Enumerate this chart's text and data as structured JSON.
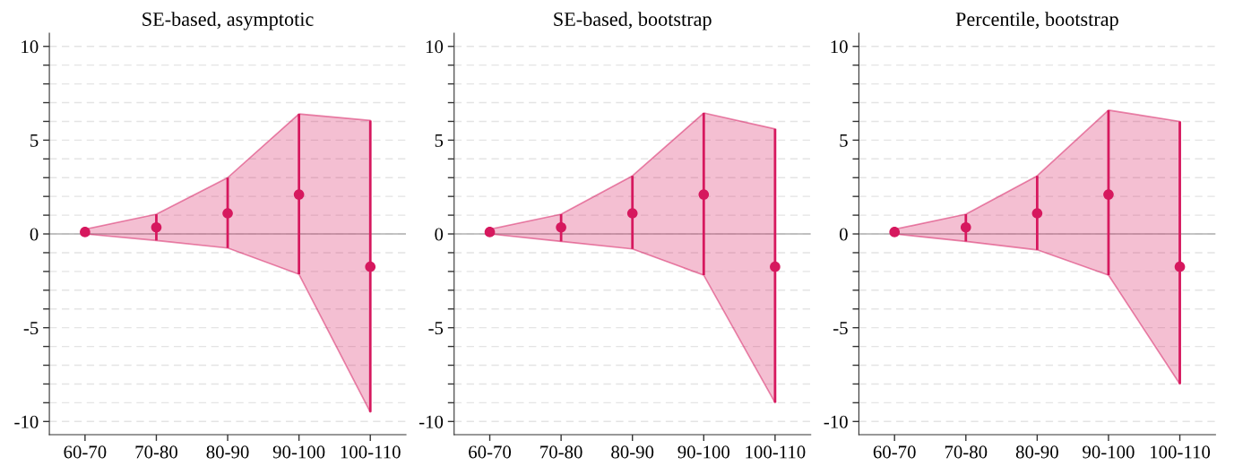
{
  "chart_data": [
    {
      "type": "scatter",
      "title": "SE-based, asymptotic",
      "categories": [
        "60-70",
        "70-80",
        "80-90",
        "90-100",
        "100-110"
      ],
      "ylim": [
        -10.7,
        10.7
      ],
      "yticks": [
        {
          "value": -10,
          "label": "-10"
        },
        {
          "value": -9,
          "label": null
        },
        {
          "value": -8,
          "label": null
        },
        {
          "value": -7,
          "label": null
        },
        {
          "value": -6,
          "label": null
        },
        {
          "value": -5,
          "label": "-5"
        },
        {
          "value": -4,
          "label": null
        },
        {
          "value": -3,
          "label": null
        },
        {
          "value": -2,
          "label": null
        },
        {
          "value": -1,
          "label": null
        },
        0,
        {
          "value": 1,
          "label": null
        },
        {
          "value": 2,
          "label": null
        },
        {
          "value": 3,
          "label": null
        },
        {
          "value": 4,
          "label": null
        },
        5,
        {
          "value": 6,
          "label": null
        },
        {
          "value": 7,
          "label": null
        },
        {
          "value": 8,
          "label": null
        },
        {
          "value": 9,
          "label": null
        },
        10
      ],
      "grid": "y",
      "marker": "circle",
      "ref_lines": [
        {
          "axis": "y",
          "value": 0,
          "color": "#b0b0b0"
        }
      ],
      "series": [
        {
          "color": "#d6185e",
          "values": [
            0.1,
            0.35,
            1.1,
            2.1,
            -1.75
          ],
          "lower": [
            0.0,
            -0.35,
            -0.75,
            -2.15,
            -9.5
          ],
          "upper": [
            0.25,
            1.05,
            3.0,
            6.4,
            6.05
          ],
          "errors": [
            null,
            [
              -0.35,
              1.05
            ],
            [
              -0.75,
              3.0
            ],
            [
              -2.15,
              6.4
            ],
            [
              -9.5,
              6.05
            ]
          ]
        }
      ]
    },
    {
      "type": "scatter",
      "title": "SE-based, bootstrap",
      "categories": [
        "60-70",
        "70-80",
        "80-90",
        "90-100",
        "100-110"
      ],
      "ylim": [
        -10.7,
        10.7
      ],
      "yticks": [
        {
          "value": -10,
          "label": "-10"
        },
        {
          "value": -9,
          "label": null
        },
        {
          "value": -8,
          "label": null
        },
        {
          "value": -7,
          "label": null
        },
        {
          "value": -6,
          "label": null
        },
        {
          "value": -5,
          "label": "-5"
        },
        {
          "value": -4,
          "label": null
        },
        {
          "value": -3,
          "label": null
        },
        {
          "value": -2,
          "label": null
        },
        {
          "value": -1,
          "label": null
        },
        0,
        {
          "value": 1,
          "label": null
        },
        {
          "value": 2,
          "label": null
        },
        {
          "value": 3,
          "label": null
        },
        {
          "value": 4,
          "label": null
        },
        5,
        {
          "value": 6,
          "label": null
        },
        {
          "value": 7,
          "label": null
        },
        {
          "value": 8,
          "label": null
        },
        {
          "value": 9,
          "label": null
        },
        10
      ],
      "grid": "y",
      "marker": "circle",
      "ref_lines": [
        {
          "axis": "y",
          "value": 0,
          "color": "#b0b0b0"
        }
      ],
      "series": [
        {
          "color": "#d6185e",
          "values": [
            0.1,
            0.35,
            1.1,
            2.1,
            -1.75
          ],
          "lower": [
            0.0,
            -0.4,
            -0.8,
            -2.2,
            -9.0
          ],
          "upper": [
            0.25,
            1.05,
            3.1,
            6.45,
            5.6
          ],
          "errors": [
            null,
            [
              -0.4,
              1.05
            ],
            [
              -0.8,
              3.1
            ],
            [
              -2.2,
              6.45
            ],
            [
              -9.0,
              5.6
            ]
          ]
        }
      ]
    },
    {
      "type": "scatter",
      "title": "Percentile, bootstrap",
      "categories": [
        "60-70",
        "70-80",
        "80-90",
        "90-100",
        "100-110"
      ],
      "ylim": [
        -10.7,
        10.7
      ],
      "yticks": [
        {
          "value": -10,
          "label": "-10"
        },
        {
          "value": -9,
          "label": null
        },
        {
          "value": -8,
          "label": null
        },
        {
          "value": -7,
          "label": null
        },
        {
          "value": -6,
          "label": null
        },
        {
          "value": -5,
          "label": "-5"
        },
        {
          "value": -4,
          "label": null
        },
        {
          "value": -3,
          "label": null
        },
        {
          "value": -2,
          "label": null
        },
        {
          "value": -1,
          "label": null
        },
        0,
        {
          "value": 1,
          "label": null
        },
        {
          "value": 2,
          "label": null
        },
        {
          "value": 3,
          "label": null
        },
        {
          "value": 4,
          "label": null
        },
        5,
        {
          "value": 6,
          "label": null
        },
        {
          "value": 7,
          "label": null
        },
        {
          "value": 8,
          "label": null
        },
        {
          "value": 9,
          "label": null
        },
        10
      ],
      "grid": "y",
      "marker": "circle",
      "ref_lines": [
        {
          "axis": "y",
          "value": 0,
          "color": "#b0b0b0"
        }
      ],
      "series": [
        {
          "color": "#d6185e",
          "values": [
            0.1,
            0.35,
            1.1,
            2.1,
            -1.75
          ],
          "lower": [
            0.0,
            -0.4,
            -0.85,
            -2.2,
            -8.0
          ],
          "upper": [
            0.25,
            1.05,
            3.1,
            6.6,
            6.0
          ],
          "errors": [
            null,
            [
              -0.4,
              1.05
            ],
            [
              -0.85,
              3.1
            ],
            [
              -2.2,
              6.6
            ],
            [
              -8.0,
              6.0
            ]
          ]
        }
      ]
    }
  ]
}
